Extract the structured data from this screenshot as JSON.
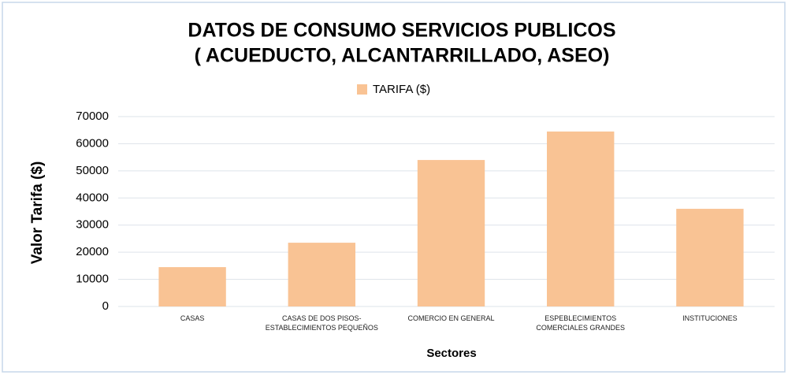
{
  "chart_data": {
    "type": "bar",
    "title": [
      "DATOS DE CONSUMO SERVICIOS PUBLICOS",
      "( ACUEDUCTO, ALCANTARRILLADO, ASEO)"
    ],
    "legend": "TARIFA ($)",
    "y_label": "Valor Tarifa ($)",
    "x_label": "Sectores",
    "categories": [
      "CASAS",
      "CASAS DE DOS PISOS-ESTABLECIMIENTOS PEQUEÑOS",
      "COMERCIO EN GENERAL",
      "ESPEBLECIMIENTOS COMERCIALES GRANDES",
      "INSTITUCIONES"
    ],
    "values": [
      14500,
      23500,
      54000,
      64500,
      36000
    ],
    "color": "#f9c394",
    "ylim": [
      0,
      70000
    ],
    "yticks": [
      0,
      10000,
      20000,
      30000,
      40000,
      50000,
      60000,
      70000
    ],
    "grid": true
  }
}
